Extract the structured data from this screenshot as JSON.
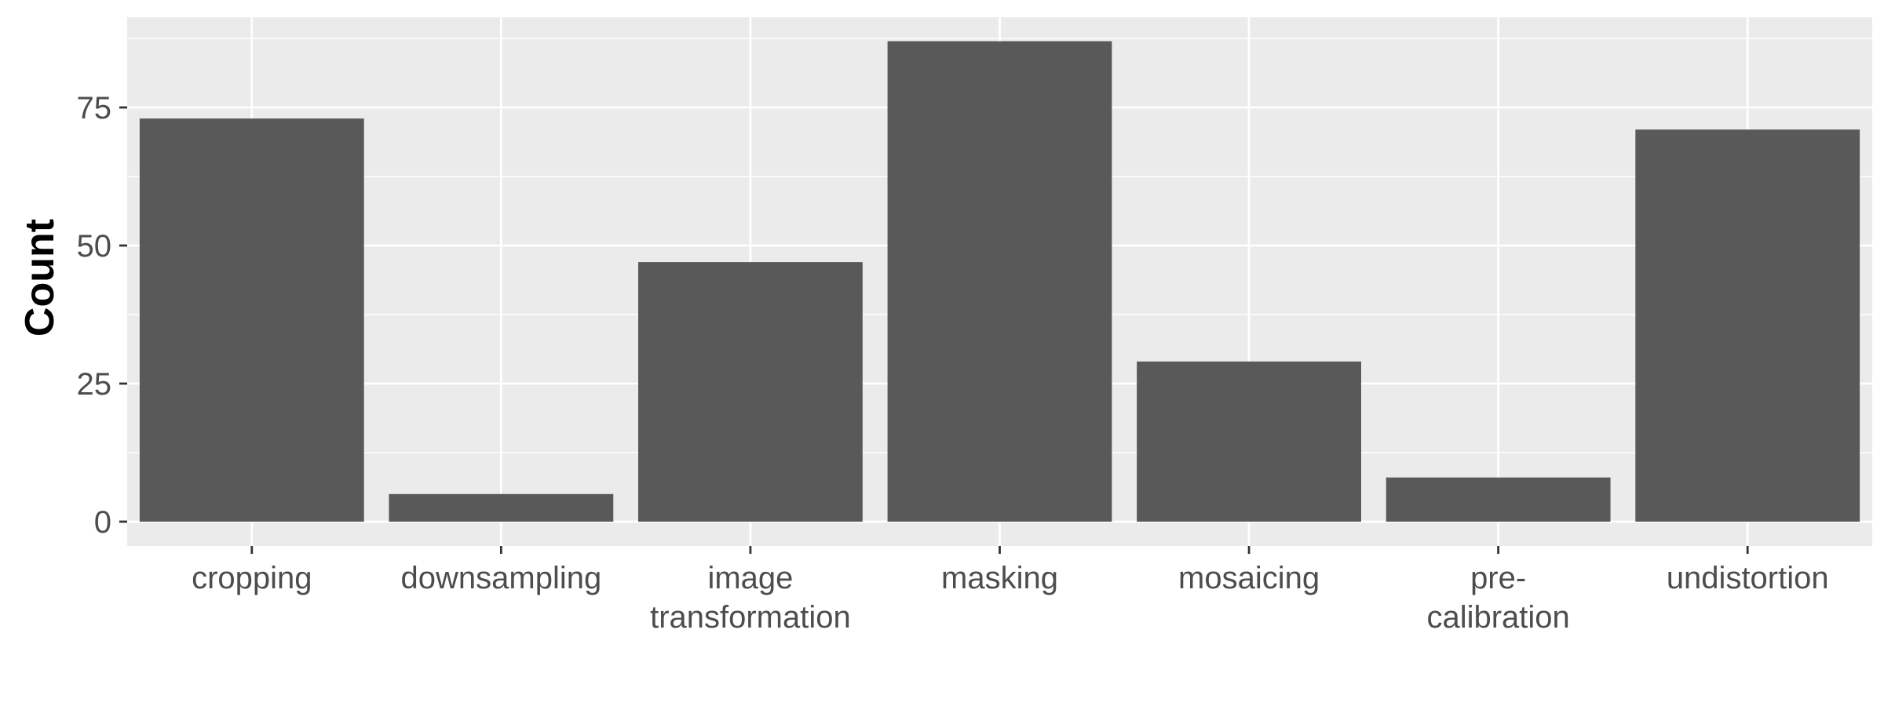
{
  "chart_data": {
    "type": "bar",
    "title": "",
    "xlabel": "",
    "ylabel": "Count",
    "categories": [
      [
        "cropping"
      ],
      [
        "downsampling"
      ],
      [
        "image",
        "transformation"
      ],
      [
        "masking"
      ],
      [
        "mosaicing"
      ],
      [
        "pre-",
        "calibration"
      ],
      [
        "undistortion"
      ]
    ],
    "values": [
      73,
      5,
      47,
      87,
      29,
      8,
      71
    ],
    "ylim": [
      0,
      90
    ],
    "yticks": [
      0,
      25,
      50,
      75
    ],
    "yticks_labels": [
      "0",
      "25",
      "50",
      "75"
    ],
    "grid": true,
    "legend": "none"
  },
  "colors": {
    "panel_background": "#ebebeb",
    "grid_major": "#ffffff",
    "grid_minor": "#f5f5f5",
    "bar_fill": "#595959",
    "tick_text": "#4d4d4d",
    "tick_mark": "#333333"
  }
}
